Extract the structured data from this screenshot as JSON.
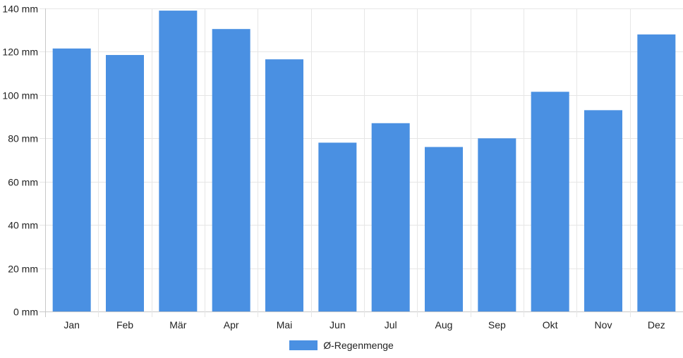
{
  "chart_data": {
    "type": "bar",
    "categories": [
      "Jan",
      "Feb",
      "Mär",
      "Apr",
      "Mai",
      "Jun",
      "Jul",
      "Aug",
      "Sep",
      "Okt",
      "Nov",
      "Dez"
    ],
    "series": [
      {
        "name": "Ø-Regenmenge",
        "values": [
          121.5,
          118.5,
          139,
          130.5,
          116.5,
          78,
          87,
          76,
          80,
          101.5,
          93,
          128
        ],
        "color": "#4a90e2"
      }
    ],
    "y_ticks": [
      "0 mm",
      "20 mm",
      "40 mm",
      "60 mm",
      "80 mm",
      "100 mm",
      "120 mm",
      "140 mm"
    ],
    "ylim": [
      0,
      140
    ],
    "y_unit": "mm",
    "grid": true,
    "legend_position": "bottom"
  }
}
